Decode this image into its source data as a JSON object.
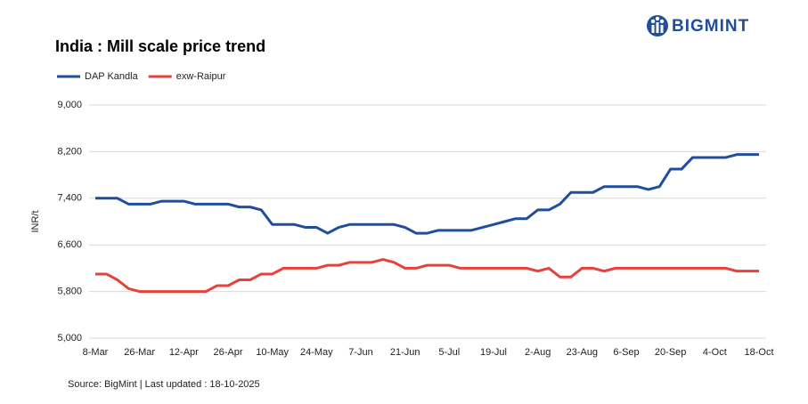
{
  "chart_data": {
    "type": "line",
    "title": "India : Mill scale price trend",
    "logo": "BIGMINT",
    "y_label": "INR/t",
    "source": "Source: BigMint | Last updated : 18-10-2025",
    "categories": [
      "8-Mar",
      null,
      null,
      null,
      "26-Mar",
      null,
      null,
      null,
      "12-Apr",
      null,
      null,
      null,
      "26-Apr",
      null,
      null,
      null,
      "10-May",
      null,
      null,
      null,
      "24-May",
      null,
      null,
      null,
      "7-Jun",
      null,
      null,
      null,
      "21-Jun",
      null,
      null,
      null,
      "5-Jul",
      null,
      null,
      null,
      "19-Jul",
      null,
      null,
      null,
      "2-Aug",
      null,
      null,
      null,
      "23-Aug",
      null,
      null,
      null,
      "6-Sep",
      null,
      null,
      null,
      "20-Sep",
      null,
      null,
      null,
      "4-Oct",
      null,
      null,
      null,
      "18-Oct"
    ],
    "series": [
      {
        "name": "DAP Kandla",
        "color": "#1f4e9c",
        "values": [
          7400,
          7400,
          7400,
          7300,
          7300,
          7300,
          7350,
          7350,
          7350,
          7300,
          7300,
          7300,
          7300,
          7250,
          7250,
          7200,
          6950,
          6950,
          6950,
          6900,
          6900,
          6800,
          6900,
          6950,
          6950,
          6950,
          6950,
          6950,
          6900,
          6800,
          6800,
          6850,
          6850,
          6850,
          6850,
          6900,
          6950,
          7000,
          7050,
          7050,
          7200,
          7200,
          7300,
          7500,
          7500,
          7500,
          7600,
          7600,
          7600,
          7600,
          7550,
          7600,
          7900,
          7900,
          8100,
          8100,
          8100,
          8100,
          8150,
          8150,
          8150
        ]
      },
      {
        "name": "exw-Raipur",
        "color": "#e8403a",
        "values": [
          6100,
          6100,
          6000,
          5850,
          5800,
          5800,
          5800,
          5800,
          5800,
          5800,
          5800,
          5900,
          5900,
          6000,
          6000,
          6100,
          6100,
          6200,
          6200,
          6200,
          6200,
          6250,
          6250,
          6300,
          6300,
          6300,
          6350,
          6300,
          6200,
          6200,
          6250,
          6250,
          6250,
          6200,
          6200,
          6200,
          6200,
          6200,
          6200,
          6200,
          6150,
          6200,
          6050,
          6050,
          6200,
          6200,
          6150,
          6200,
          6200,
          6200,
          6200,
          6200,
          6200,
          6200,
          6200,
          6200,
          6200,
          6200,
          6150,
          6150,
          6150
        ]
      }
    ],
    "ylim": [
      5000,
      9000
    ],
    "yticks": [
      {
        "value": 5000,
        "label": "5,000"
      },
      {
        "value": 5800,
        "label": "5,800"
      },
      {
        "value": 6600,
        "label": "6,600"
      },
      {
        "value": 7400,
        "label": "7,400"
      },
      {
        "value": 8200,
        "label": "8,200"
      },
      {
        "value": 9000,
        "label": "9,000"
      }
    ],
    "grid": true
  }
}
